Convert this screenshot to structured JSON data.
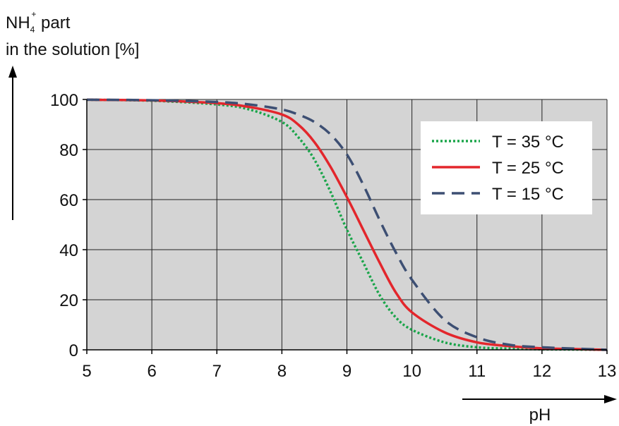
{
  "chart_data": {
    "type": "line",
    "title": "",
    "ylabel_species": "NH",
    "ylabel_sub": "4",
    "ylabel_sup": "+",
    "ylabel_part": " part",
    "ylabel_line2": "in the solution [%]",
    "xlabel": "pH",
    "xlim": [
      5,
      13
    ],
    "ylim": [
      0,
      100
    ],
    "xticks": [
      "5",
      "6",
      "7",
      "8",
      "9",
      "10",
      "11",
      "12",
      "13"
    ],
    "yticks": [
      "0",
      "20",
      "40",
      "60",
      "80",
      "100"
    ],
    "grid": true,
    "background_color": "#d4d4d4",
    "legend_position": "top-right",
    "series": [
      {
        "name": "T = 35 °C",
        "color": "#1aa54a",
        "style": "dotted",
        "x": [
          5,
          6,
          7,
          7.5,
          8,
          8.25,
          8.5,
          8.75,
          9,
          9.25,
          9.5,
          9.75,
          10,
          10.5,
          11,
          11.5,
          12,
          12.5,
          13
        ],
        "y": [
          99.9,
          99.5,
          98,
          96,
          91,
          85,
          76,
          63,
          48,
          35,
          22,
          13,
          8,
          3,
          1,
          0.5,
          0.2,
          0.1,
          0
        ]
      },
      {
        "name": "T = 25 °C",
        "color": "#e3262c",
        "style": "solid",
        "x": [
          5,
          6,
          7,
          7.5,
          8,
          8.25,
          8.5,
          8.75,
          9,
          9.25,
          9.5,
          9.75,
          10,
          10.5,
          11,
          11.5,
          12,
          12.5,
          13
        ],
        "y": [
          99.9,
          99.6,
          98.5,
          97,
          94,
          90,
          83,
          73,
          61,
          48,
          35,
          23,
          15,
          7,
          3,
          1.5,
          0.6,
          0.3,
          0
        ]
      },
      {
        "name": "T = 15 °C",
        "color": "#3d4f73",
        "style": "dashed",
        "x": [
          5,
          6,
          7,
          7.5,
          8,
          8.25,
          8.5,
          8.75,
          9,
          9.25,
          9.5,
          9.75,
          10,
          10.5,
          11,
          11.5,
          12,
          12.5,
          13
        ],
        "y": [
          99.9,
          99.7,
          99,
          98,
          96,
          94,
          91,
          86,
          78,
          66,
          52,
          39,
          28,
          12,
          5,
          2,
          1,
          0.5,
          0
        ]
      }
    ]
  }
}
